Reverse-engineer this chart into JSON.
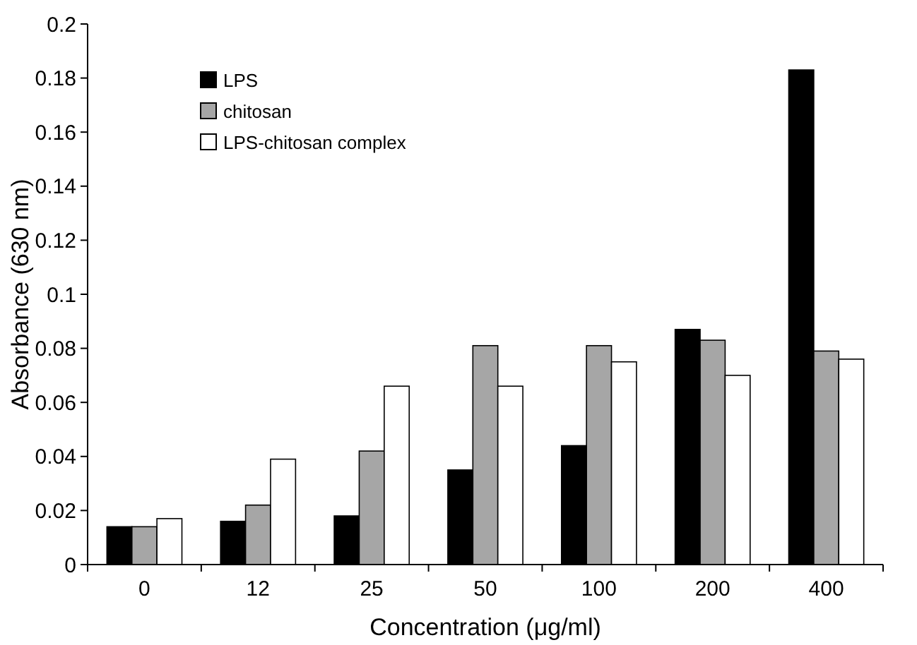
{
  "chart_data": {
    "type": "bar",
    "xlabel": "Concentration (μg/ml)",
    "ylabel": "Absorbance (630 nm)",
    "categories": [
      "0",
      "12",
      "25",
      "50",
      "100",
      "200",
      "400"
    ],
    "series": [
      {
        "name": "LPS",
        "color": "#000000",
        "values": [
          0.014,
          0.016,
          0.018,
          0.035,
          0.044,
          0.087,
          0.183
        ]
      },
      {
        "name": "chitosan",
        "color": "#a6a6a6",
        "values": [
          0.014,
          0.022,
          0.042,
          0.081,
          0.081,
          0.083,
          0.079
        ]
      },
      {
        "name": "LPS-chitosan complex",
        "color": "#ffffff",
        "values": [
          0.017,
          0.039,
          0.066,
          0.066,
          0.075,
          0.07,
          0.076
        ]
      }
    ],
    "ylim": [
      0,
      0.2
    ],
    "yticks": [
      0,
      0.02,
      0.04,
      0.06,
      0.08,
      0.1,
      0.12,
      0.14,
      0.16,
      0.18,
      0.2
    ],
    "grid": false,
    "legend": "top left"
  }
}
